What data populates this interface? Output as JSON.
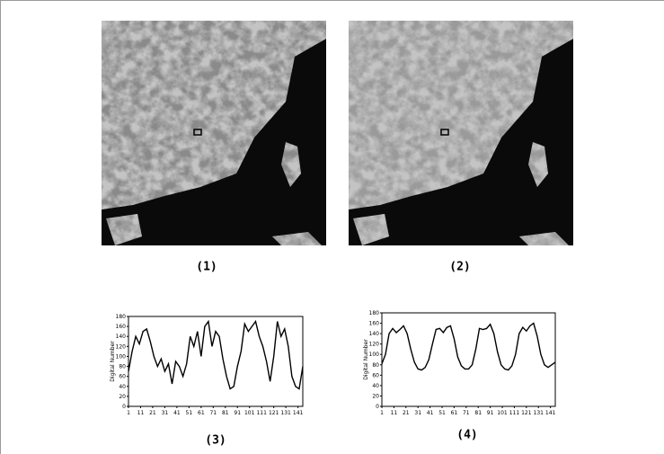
{
  "panels": [
    "(1)",
    "(2)",
    "(3)",
    "(4)"
  ],
  "chart_data": [
    {
      "type": "line",
      "ylabel": "Digital Number",
      "color": "#000000",
      "x": [
        1,
        4,
        7,
        10,
        13,
        16,
        19,
        22,
        25,
        28,
        31,
        34,
        37,
        40,
        43,
        46,
        49,
        52,
        55,
        58,
        61,
        64,
        67,
        70,
        73,
        76,
        79,
        82,
        85,
        88,
        91,
        94,
        97,
        100,
        103,
        106,
        109,
        112,
        115,
        118,
        121,
        124,
        127,
        130,
        133,
        136,
        139,
        142,
        145
      ],
      "values": [
        70,
        110,
        140,
        125,
        150,
        155,
        130,
        100,
        80,
        95,
        70,
        85,
        45,
        90,
        80,
        60,
        85,
        140,
        120,
        150,
        100,
        160,
        170,
        120,
        150,
        140,
        95,
        60,
        35,
        40,
        80,
        110,
        165,
        150,
        160,
        170,
        140,
        120,
        90,
        50,
        100,
        170,
        140,
        155,
        120,
        60,
        40,
        35,
        80
      ],
      "xlim": [
        1,
        145
      ],
      "xticks": [
        1,
        11,
        21,
        31,
        41,
        51,
        61,
        71,
        81,
        91,
        101,
        111,
        121,
        131,
        141
      ],
      "ylim": [
        0,
        180
      ],
      "yticks": [
        0,
        20,
        40,
        60,
        80,
        100,
        120,
        140,
        160,
        180
      ]
    },
    {
      "type": "line",
      "ylabel": "Digital Number",
      "color": "#000000",
      "x": [
        1,
        4,
        7,
        10,
        13,
        16,
        19,
        22,
        25,
        28,
        31,
        34,
        37,
        40,
        43,
        46,
        49,
        52,
        55,
        58,
        61,
        64,
        67,
        70,
        73,
        76,
        79,
        82,
        85,
        88,
        91,
        94,
        97,
        100,
        103,
        106,
        109,
        112,
        115,
        118,
        121,
        124,
        127,
        130,
        133,
        136,
        139,
        142,
        145
      ],
      "values": [
        82,
        100,
        140,
        150,
        142,
        148,
        155,
        140,
        110,
        85,
        72,
        70,
        75,
        90,
        120,
        148,
        150,
        142,
        152,
        155,
        130,
        95,
        78,
        72,
        72,
        80,
        110,
        150,
        148,
        150,
        158,
        140,
        105,
        80,
        72,
        70,
        78,
        100,
        140,
        152,
        145,
        155,
        160,
        135,
        100,
        80,
        75,
        80,
        85
      ],
      "xlim": [
        1,
        145
      ],
      "xticks": [
        1,
        11,
        21,
        31,
        41,
        51,
        61,
        71,
        81,
        91,
        101,
        111,
        121,
        131,
        141
      ],
      "ylim": [
        0,
        180
      ],
      "yticks": [
        0,
        20,
        40,
        60,
        80,
        100,
        120,
        140,
        160,
        180
      ]
    }
  ]
}
